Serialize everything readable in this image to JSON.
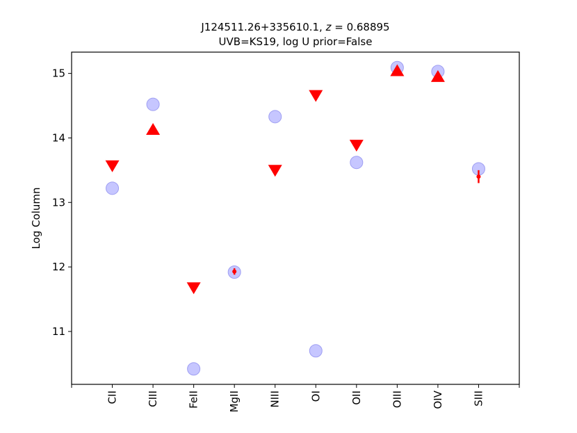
{
  "chart_data": {
    "type": "scatter",
    "title_line1": "J124511.26+335610.1, z = 0.68895",
    "title_line1_prefix": "J124511.26+335610.1, ",
    "title_line1_z": "z",
    "title_line1_suffix": " = 0.68895",
    "title_line2": "UVB=KS19, log U prior=False",
    "xlabel": "",
    "ylabel": "Log Column",
    "categories": [
      "CII",
      "CIII",
      "FeII",
      "MgII",
      "NIII",
      "OI",
      "OII",
      "OIII",
      "OIV",
      "SIII"
    ],
    "yticks": [
      "11",
      "12",
      "13",
      "14",
      "15"
    ],
    "ylim": [
      10.18,
      15.33
    ],
    "grid": false,
    "series": [
      {
        "marker": "circle",
        "color": "#b3b3ff",
        "values": [
          13.22,
          14.52,
          10.42,
          11.92,
          14.33,
          10.7,
          13.62,
          15.09,
          15.03,
          13.52
        ]
      },
      {
        "marker": "red-measurements",
        "color": "#ff0000",
        "points": [
          {
            "category": "CII",
            "type": "upper-limit",
            "value": 13.56
          },
          {
            "category": "CIII",
            "type": "lower-limit",
            "value": 14.14
          },
          {
            "category": "FeII",
            "type": "upper-limit",
            "value": 11.67
          },
          {
            "category": "MgII",
            "type": "detection",
            "value": 11.93,
            "err": 0.05
          },
          {
            "category": "NIII",
            "type": "upper-limit",
            "value": 13.49
          },
          {
            "category": "OI",
            "type": "upper-limit",
            "value": 14.65
          },
          {
            "category": "OII",
            "type": "upper-limit",
            "value": 13.88
          },
          {
            "category": "OIII",
            "type": "lower-limit",
            "value": 15.05
          },
          {
            "category": "OIV",
            "type": "lower-limit",
            "value": 14.96
          },
          {
            "category": "SIII",
            "type": "detection",
            "value": 13.4,
            "err": 0.1
          }
        ]
      }
    ]
  }
}
